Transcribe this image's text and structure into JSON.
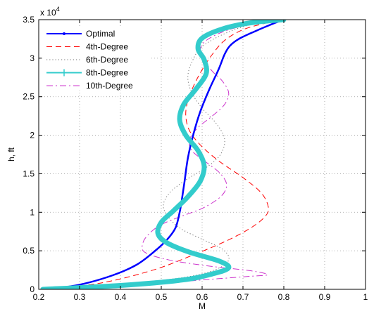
{
  "chart_data": {
    "type": "line",
    "xlabel": "M",
    "ylabel": "h, ft",
    "y_exponent_base": "x 10",
    "y_exponent_power": "4",
    "xlim": [
      0.2,
      1.0
    ],
    "ylim": [
      0,
      35000
    ],
    "x_ticks": [
      0.2,
      0.3,
      0.4,
      0.5,
      0.6,
      0.7,
      0.8,
      0.9,
      1.0
    ],
    "x_tick_labels": [
      "0.2",
      "0.3",
      "0.4",
      "0.5",
      "0.6",
      "0.7",
      "0.8",
      "0.9",
      "1"
    ],
    "y_ticks": [
      0,
      5000,
      10000,
      15000,
      20000,
      25000,
      30000,
      35000
    ],
    "y_tick_labels": [
      "0",
      "0.5",
      "1",
      "1.5",
      "2",
      "2.5",
      "3",
      "3.5"
    ],
    "grid": true,
    "legend_position": "top-left",
    "series": [
      {
        "name": "Optimal",
        "color": "#0000ff",
        "style": "solid",
        "width": 2.5,
        "marker": "dot",
        "points": [
          [
            0.22,
            0
          ],
          [
            0.3,
            600
          ],
          [
            0.38,
            1800
          ],
          [
            0.44,
            3200
          ],
          [
            0.485,
            5000
          ],
          [
            0.515,
            6500
          ],
          [
            0.535,
            8000
          ],
          [
            0.545,
            10000
          ],
          [
            0.55,
            11500
          ],
          [
            0.557,
            14000
          ],
          [
            0.565,
            17000
          ],
          [
            0.578,
            20000
          ],
          [
            0.595,
            23000
          ],
          [
            0.618,
            26000
          ],
          [
            0.64,
            28500
          ],
          [
            0.655,
            30500
          ],
          [
            0.668,
            31600
          ],
          [
            0.69,
            32500
          ],
          [
            0.73,
            33500
          ],
          [
            0.77,
            34400
          ],
          [
            0.8,
            35000
          ]
        ]
      },
      {
        "name": "4th-Degree",
        "color": "#ff0000",
        "style": "dashed",
        "width": 1,
        "points": [
          [
            0.21,
            0
          ],
          [
            0.35,
            800
          ],
          [
            0.48,
            2500
          ],
          [
            0.58,
            4500
          ],
          [
            0.66,
            6300
          ],
          [
            0.72,
            8000
          ],
          [
            0.755,
            9500
          ],
          [
            0.762,
            10700
          ],
          [
            0.745,
            12500
          ],
          [
            0.7,
            14500
          ],
          [
            0.645,
            16500
          ],
          [
            0.6,
            18500
          ],
          [
            0.57,
            20500
          ],
          [
            0.56,
            22500
          ],
          [
            0.565,
            24500
          ],
          [
            0.58,
            26500
          ],
          [
            0.6,
            28500
          ],
          [
            0.625,
            30500
          ],
          [
            0.655,
            32300
          ],
          [
            0.7,
            33700
          ],
          [
            0.76,
            34600
          ],
          [
            0.8,
            35000
          ]
        ]
      },
      {
        "name": "6th-Degree",
        "color": "#707070",
        "style": "dotted",
        "width": 1,
        "points": [
          [
            0.21,
            0
          ],
          [
            0.4,
            700
          ],
          [
            0.55,
            1500
          ],
          [
            0.63,
            2500
          ],
          [
            0.665,
            3800
          ],
          [
            0.65,
            5200
          ],
          [
            0.6,
            6500
          ],
          [
            0.55,
            7800
          ],
          [
            0.52,
            9200
          ],
          [
            0.505,
            10800
          ],
          [
            0.52,
            12500
          ],
          [
            0.56,
            14200
          ],
          [
            0.61,
            15800
          ],
          [
            0.645,
            17500
          ],
          [
            0.655,
            19500
          ],
          [
            0.635,
            21500
          ],
          [
            0.6,
            23500
          ],
          [
            0.575,
            25500
          ],
          [
            0.565,
            27500
          ],
          [
            0.575,
            29500
          ],
          [
            0.6,
            31500
          ],
          [
            0.66,
            33300
          ],
          [
            0.73,
            34500
          ],
          [
            0.8,
            35000
          ]
        ]
      },
      {
        "name": "8th-Degree",
        "color": "#33cccc",
        "style": "solid",
        "width": 7,
        "marker": "plus",
        "points": [
          [
            0.21,
            0
          ],
          [
            0.4,
            500
          ],
          [
            0.55,
            1200
          ],
          [
            0.625,
            2000
          ],
          [
            0.665,
            2800
          ],
          [
            0.64,
            3700
          ],
          [
            0.57,
            4800
          ],
          [
            0.515,
            6000
          ],
          [
            0.492,
            7200
          ],
          [
            0.5,
            8700
          ],
          [
            0.53,
            10200
          ],
          [
            0.565,
            12000
          ],
          [
            0.595,
            14000
          ],
          [
            0.605,
            16000
          ],
          [
            0.59,
            18000
          ],
          [
            0.56,
            20000
          ],
          [
            0.545,
            22000
          ],
          [
            0.555,
            24000
          ],
          [
            0.585,
            26000
          ],
          [
            0.61,
            28000
          ],
          [
            0.605,
            29800
          ],
          [
            0.59,
            31200
          ],
          [
            0.6,
            32600
          ],
          [
            0.65,
            33800
          ],
          [
            0.72,
            34600
          ],
          [
            0.8,
            35000
          ]
        ]
      },
      {
        "name": "10th-Degree",
        "color": "#cc33cc",
        "style": "dashdot",
        "width": 1,
        "points": [
          [
            0.21,
            0
          ],
          [
            0.35,
            300
          ],
          [
            0.5,
            800
          ],
          [
            0.62,
            1300
          ],
          [
            0.72,
            1700
          ],
          [
            0.76,
            1900
          ],
          [
            0.72,
            2400
          ],
          [
            0.62,
            3000
          ],
          [
            0.52,
            3800
          ],
          [
            0.46,
            4800
          ],
          [
            0.455,
            6000
          ],
          [
            0.47,
            7200
          ],
          [
            0.5,
            8400
          ],
          [
            0.55,
            9500
          ],
          [
            0.6,
            10500
          ],
          [
            0.645,
            12000
          ],
          [
            0.66,
            13500
          ],
          [
            0.645,
            15000
          ],
          [
            0.61,
            16500
          ],
          [
            0.575,
            18000
          ],
          [
            0.57,
            19500
          ],
          [
            0.59,
            21000
          ],
          [
            0.625,
            22500
          ],
          [
            0.655,
            24000
          ],
          [
            0.665,
            25500
          ],
          [
            0.65,
            27000
          ],
          [
            0.625,
            28300
          ],
          [
            0.605,
            29700
          ],
          [
            0.595,
            31000
          ],
          [
            0.61,
            32300
          ],
          [
            0.66,
            33600
          ],
          [
            0.73,
            34500
          ],
          [
            0.8,
            35000
          ]
        ]
      }
    ]
  }
}
